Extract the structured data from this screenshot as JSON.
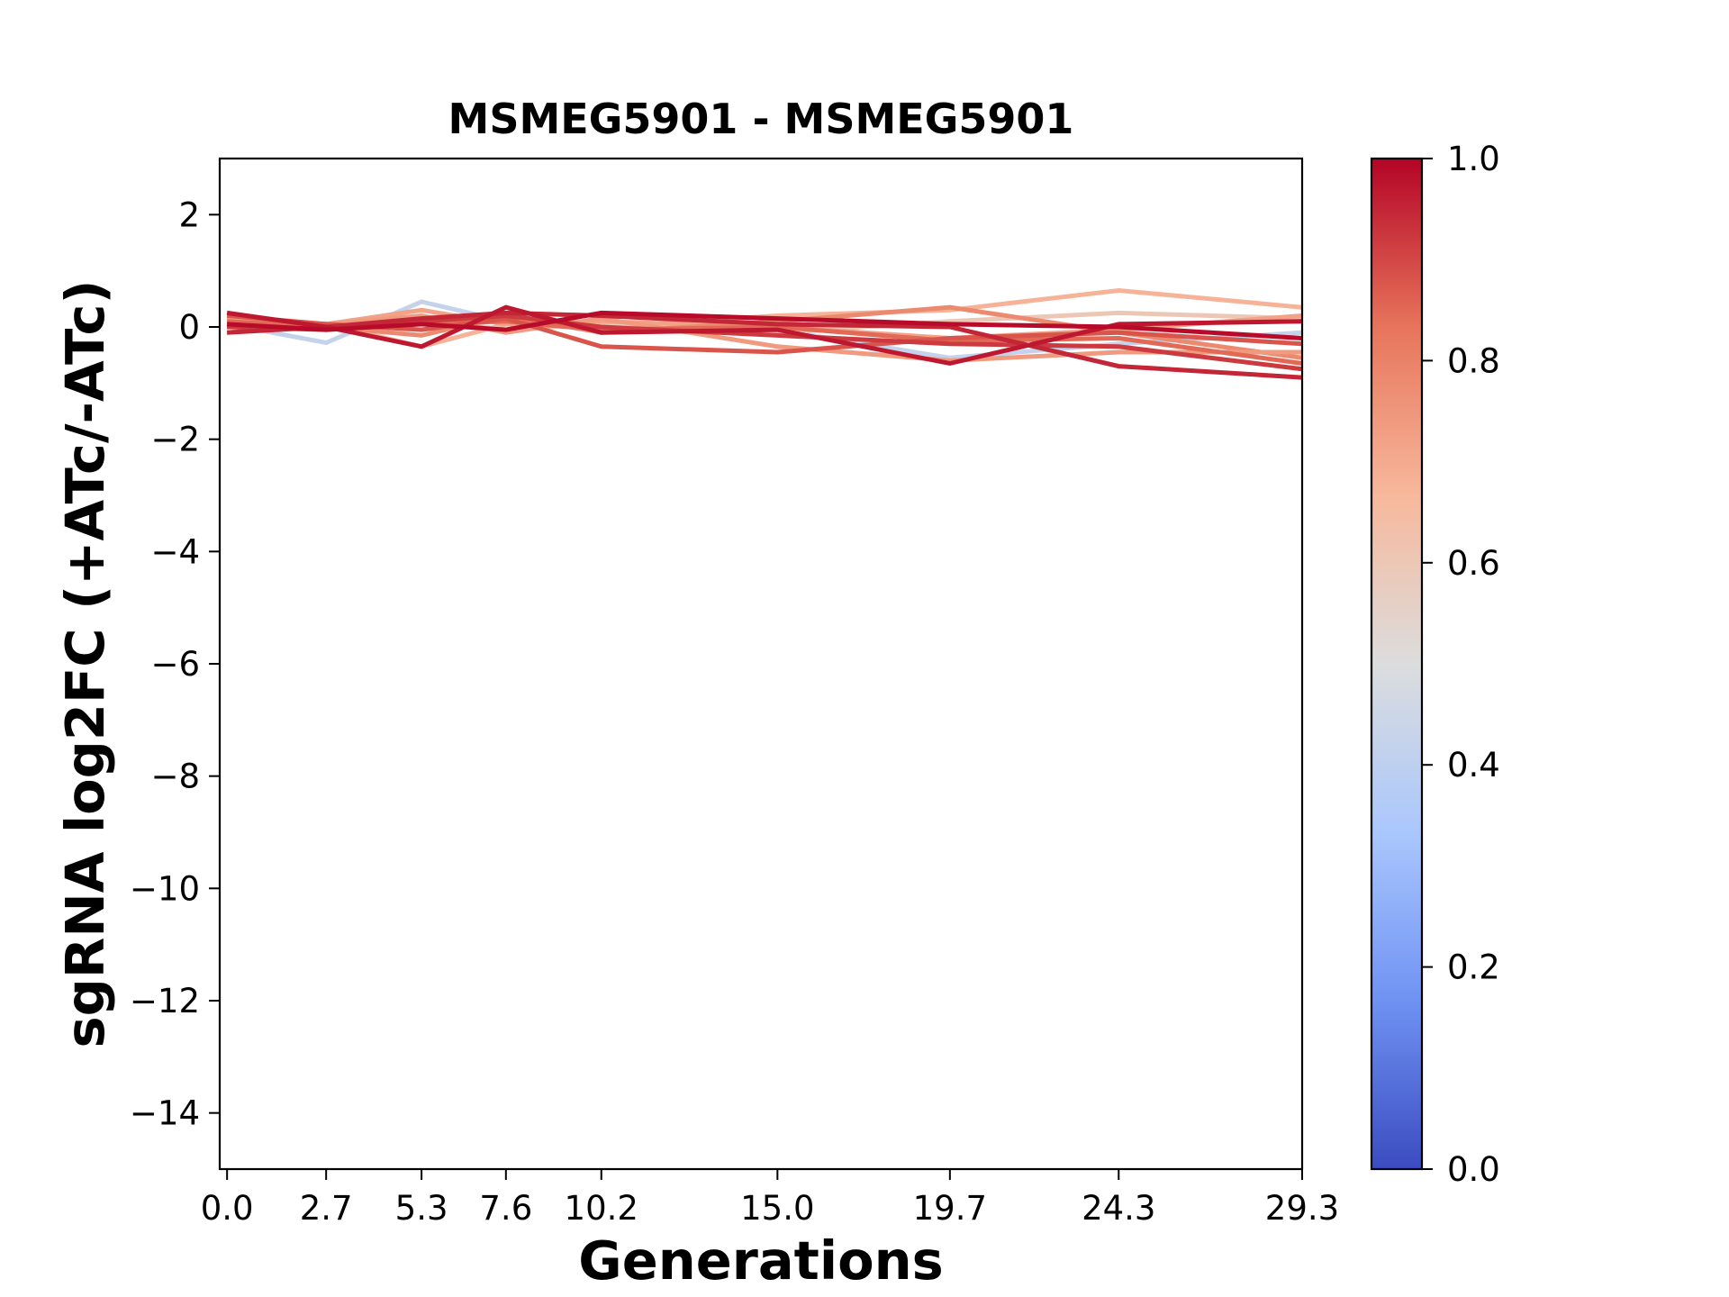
{
  "chart_data": {
    "type": "line",
    "title": "MSMEG5901 - MSMEG5901",
    "xlabel": "Generations",
    "ylabel": "sgRNA log2FC (+ATc/-ATc)",
    "x": [
      0.0,
      2.7,
      5.3,
      7.6,
      10.2,
      15.0,
      19.7,
      24.3,
      29.3
    ],
    "x_tick_labels": [
      "0.0",
      "2.7",
      "5.3",
      "7.6",
      "10.2",
      "15.0",
      "19.7",
      "24.3",
      "29.3"
    ],
    "xlim": [
      -0.2,
      29.3
    ],
    "ylim": [
      -15,
      3
    ],
    "y_ticks": [
      2,
      0,
      -2,
      -4,
      -6,
      -8,
      -10,
      -12,
      -14
    ],
    "y_tick_labels": [
      "2",
      "0",
      "−2",
      "−4",
      "−6",
      "−8",
      "−10",
      "−12",
      "−14"
    ],
    "colorbar": {
      "colormap": "coolwarm",
      "range": [
        0.0,
        1.0
      ],
      "ticks": [
        0.0,
        0.2,
        0.4,
        0.6,
        0.8,
        1.0
      ],
      "tick_labels": [
        "0.0",
        "0.2",
        "0.4",
        "0.6",
        "0.8",
        "1.0"
      ],
      "stops": [
        "#3b4cc0",
        "#6f92f3",
        "#aac7fd",
        "#dcdddd",
        "#f7b89c",
        "#e7745b",
        "#b40426"
      ]
    },
    "series": [
      {
        "color_value": 0.42,
        "values": [
          0.05,
          -0.28,
          0.45,
          0.1,
          -0.05,
          -0.05,
          -0.55,
          -0.3,
          -0.1
        ]
      },
      {
        "color_value": 0.68,
        "values": [
          0.1,
          0.05,
          -0.35,
          0.05,
          0.0,
          0.2,
          0.3,
          0.65,
          0.35
        ]
      },
      {
        "color_value": 0.6,
        "values": [
          0.05,
          0.0,
          0.15,
          -0.05,
          0.05,
          -0.1,
          0.1,
          0.25,
          0.15
        ]
      },
      {
        "color_value": 0.72,
        "values": [
          0.15,
          0.05,
          0.3,
          0.05,
          0.1,
          0.0,
          -0.2,
          -0.05,
          0.2
        ]
      },
      {
        "color_value": 0.78,
        "values": [
          0.0,
          0.0,
          -0.15,
          0.2,
          -0.1,
          0.1,
          0.35,
          -0.1,
          -0.55
        ]
      },
      {
        "color_value": 0.74,
        "values": [
          -0.1,
          0.05,
          0.2,
          -0.1,
          0.15,
          -0.35,
          -0.6,
          -0.45,
          -0.45
        ]
      },
      {
        "color_value": 0.85,
        "values": [
          0.1,
          0.0,
          0.05,
          0.1,
          -0.05,
          0.0,
          -0.25,
          -0.2,
          -0.65
        ]
      },
      {
        "color_value": 0.88,
        "values": [
          0.2,
          0.05,
          -0.05,
          0.15,
          -0.35,
          -0.45,
          -0.2,
          -0.1,
          -0.3
        ]
      },
      {
        "color_value": 0.92,
        "values": [
          0.0,
          -0.05,
          0.1,
          0.2,
          0.0,
          -0.15,
          -0.3,
          -0.35,
          -0.75
        ]
      },
      {
        "color_value": 0.95,
        "values": [
          -0.1,
          0.0,
          0.15,
          0.25,
          0.2,
          0.05,
          0.0,
          -0.7,
          -0.9
        ]
      },
      {
        "color_value": 0.97,
        "values": [
          0.25,
          0.0,
          -0.35,
          0.35,
          -0.1,
          -0.05,
          -0.65,
          0.05,
          0.1
        ]
      },
      {
        "color_value": 0.99,
        "values": [
          0.05,
          -0.05,
          0.05,
          -0.05,
          0.25,
          0.15,
          0.05,
          0.0,
          -0.2
        ]
      }
    ]
  }
}
